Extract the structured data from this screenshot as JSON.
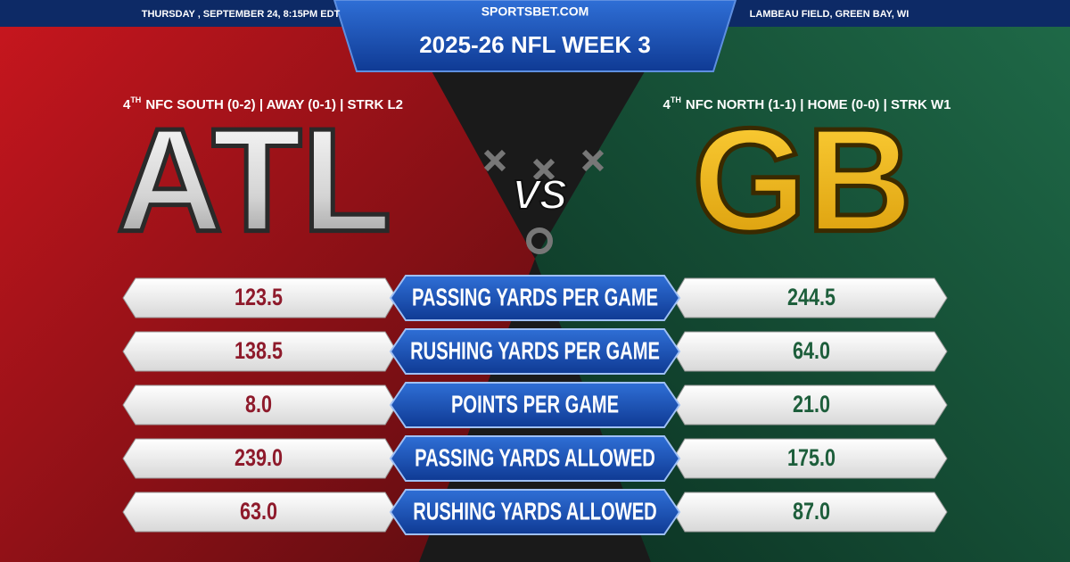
{
  "header": {
    "date": "THURSDAY , SEPTEMBER 24, 8:15PM EDT",
    "site": "SPORTSBET.COM",
    "venue": "LAMBEAU FIELD, GREEN BAY, WI",
    "title": "2025-26 NFL WEEK 3"
  },
  "away": {
    "rank": "4",
    "rank_suffix": "TH",
    "record": "NFC SOUTH (0-2) | AWAY (0-1) | STRK L2",
    "team": "ATL"
  },
  "home": {
    "rank": "4",
    "rank_suffix": "TH",
    "record": "NFC NORTH (1-1) | HOME (0-0) | STRK W1",
    "team": "GB"
  },
  "vs": "VS",
  "stats": [
    {
      "label": "PASSING YARDS PER GAME",
      "away": "123.5",
      "home": "244.5"
    },
    {
      "label": "RUSHING YARDS PER GAME",
      "away": "138.5",
      "home": "64.0"
    },
    {
      "label": "POINTS PER GAME",
      "away": "8.0",
      "home": "21.0"
    },
    {
      "label": "PASSING YARDS ALLOWED",
      "away": "239.0",
      "home": "175.0"
    },
    {
      "label": "RUSHING YARDS ALLOWED",
      "away": "63.0",
      "home": "87.0"
    }
  ]
}
